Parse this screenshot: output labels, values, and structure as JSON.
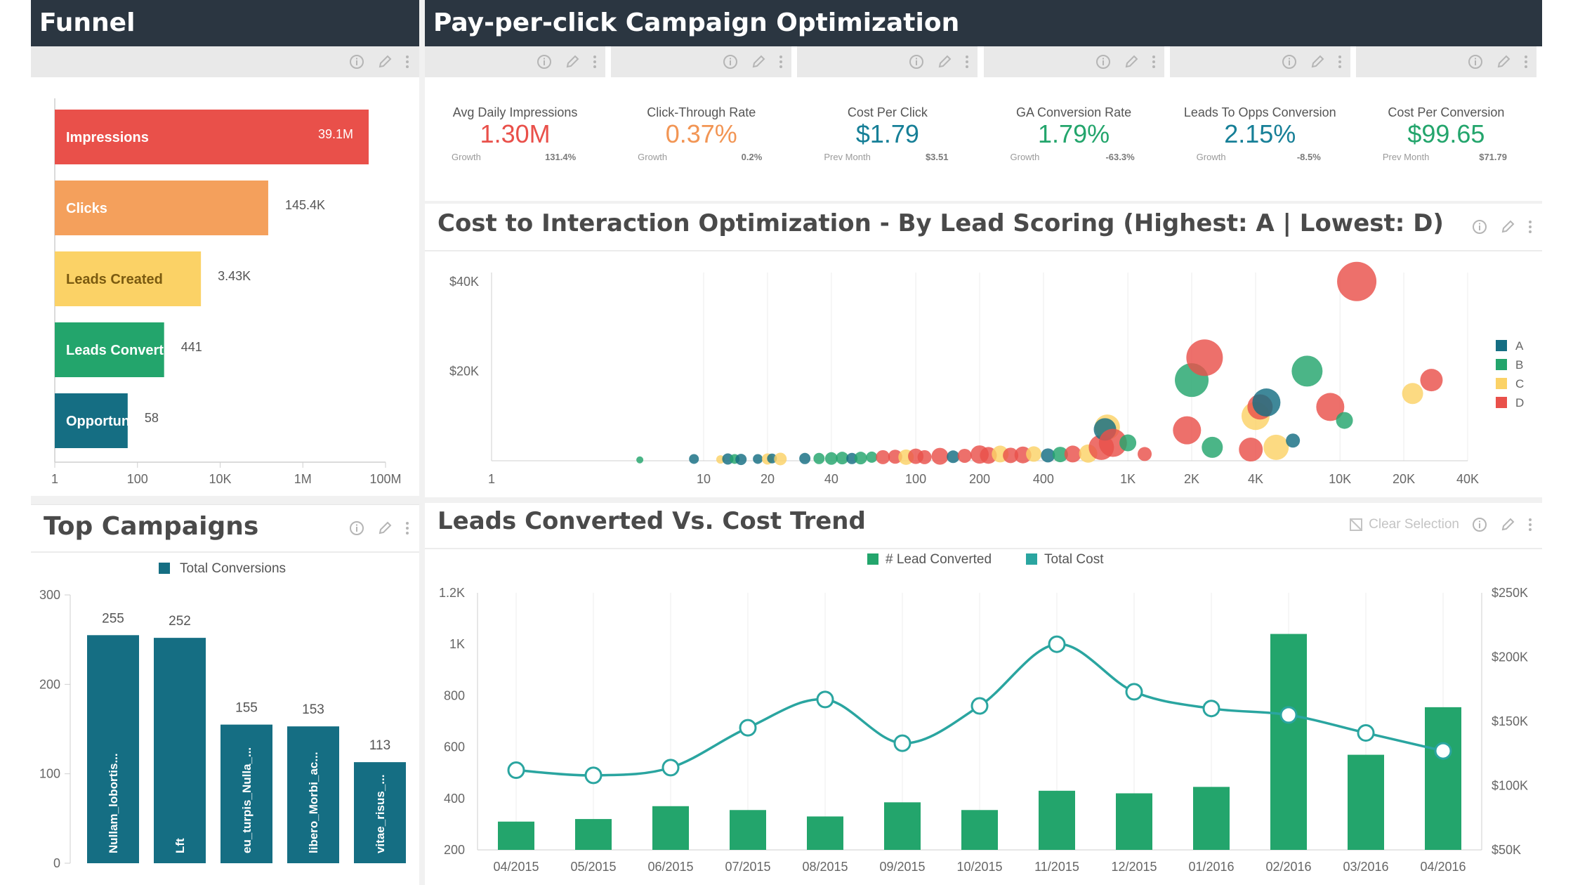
{
  "funnel": {
    "title": "Funnel",
    "bars": [
      {
        "label": "Impressions",
        "value": 39100000,
        "value_label": "39.1M",
        "color": "#e9504a"
      },
      {
        "label": "Clicks",
        "value": 145400,
        "value_label": "145.4K",
        "color": "#f4a05c"
      },
      {
        "label": "Leads Created",
        "value": 3430,
        "value_label": "3.43K",
        "color": "#fbd266"
      },
      {
        "label": "Leads Converted",
        "value": 441,
        "value_label": "441",
        "color": "#23a56c"
      },
      {
        "label": "Opportunity Won",
        "value": 58,
        "value_label": "58",
        "color": "#156e83"
      }
    ],
    "axis_ticks": [
      "1",
      "100",
      "10K",
      "1M",
      "100M"
    ]
  },
  "ppc": {
    "title": "Pay-per-click Campaign Optimization",
    "kpis": [
      {
        "title": "Avg Daily Impressions",
        "value": "1.30M",
        "color": "#e9504a",
        "sub_label": "Growth",
        "sub_value": "131.4%"
      },
      {
        "title": "Click-Through Rate",
        "value": "0.37%",
        "color": "#f29554",
        "sub_label": "Growth",
        "sub_value": "0.2%"
      },
      {
        "title": "Cost Per Click",
        "value": "$1.79",
        "color": "#167f97",
        "sub_label": "Prev Month",
        "sub_value": "$3.51"
      },
      {
        "title": "GA Conversion Rate",
        "value": "1.79%",
        "color": "#23a56c",
        "sub_label": "Growth",
        "sub_value": "-63.3%"
      },
      {
        "title": "Leads To Opps Conversion",
        "value": "2.15%",
        "color": "#167f97",
        "sub_label": "Growth",
        "sub_value": "-8.5%"
      },
      {
        "title": "Cost Per Conversion",
        "value": "$99.65",
        "color": "#23a56c",
        "sub_label": "Prev Month",
        "sub_value": "$71.79"
      }
    ]
  },
  "scatter_title": "Cost to Interaction Optimization - By Lead Scoring (Highest: A | Lowest: D)",
  "trend_title": "Leads Converted Vs. Cost Trend",
  "trend_clear_selection": "Clear Selection",
  "campaigns_title": "Top Campaigns",
  "colors": {
    "A": "#156e83",
    "B": "#23a56c",
    "C": "#fbd266",
    "D": "#e9504a",
    "line": "#2aa5a0",
    "bar": "#23a56c"
  },
  "chart_data": [
    {
      "type": "scatter",
      "x_scale": "log",
      "x_ticks": [
        "1",
        "10",
        "20",
        "40",
        "100",
        "200",
        "400",
        "1K",
        "2K",
        "4K",
        "10K",
        "20K",
        "40K"
      ],
      "y_ticks": [
        "$40K",
        "$20K"
      ],
      "ylim": [
        0,
        42000
      ],
      "legend": [
        "A",
        "B",
        "C",
        "D"
      ],
      "legend_position": "right",
      "points": [
        {
          "x": 5,
          "y": 200,
          "s": 5,
          "g": "B"
        },
        {
          "x": 9,
          "y": 400,
          "s": 7,
          "g": "A"
        },
        {
          "x": 12,
          "y": 300,
          "s": 6,
          "g": "C"
        },
        {
          "x": 13,
          "y": 400,
          "s": 8,
          "g": "A"
        },
        {
          "x": 14,
          "y": 400,
          "s": 7,
          "g": "B"
        },
        {
          "x": 15,
          "y": 300,
          "s": 8,
          "g": "A"
        },
        {
          "x": 18,
          "y": 400,
          "s": 7,
          "g": "A"
        },
        {
          "x": 20,
          "y": 400,
          "s": 8,
          "g": "C"
        },
        {
          "x": 21,
          "y": 500,
          "s": 7,
          "g": "A"
        },
        {
          "x": 23,
          "y": 400,
          "s": 9,
          "g": "C"
        },
        {
          "x": 30,
          "y": 500,
          "s": 8,
          "g": "A"
        },
        {
          "x": 35,
          "y": 500,
          "s": 8,
          "g": "B"
        },
        {
          "x": 40,
          "y": 500,
          "s": 9,
          "g": "B"
        },
        {
          "x": 45,
          "y": 600,
          "s": 9,
          "g": "B"
        },
        {
          "x": 50,
          "y": 500,
          "s": 8,
          "g": "A"
        },
        {
          "x": 55,
          "y": 600,
          "s": 9,
          "g": "B"
        },
        {
          "x": 62,
          "y": 800,
          "s": 8,
          "g": "B"
        },
        {
          "x": 70,
          "y": 800,
          "s": 10,
          "g": "D"
        },
        {
          "x": 80,
          "y": 900,
          "s": 10,
          "g": "D"
        },
        {
          "x": 90,
          "y": 800,
          "s": 11,
          "g": "C"
        },
        {
          "x": 100,
          "y": 1000,
          "s": 11,
          "g": "D"
        },
        {
          "x": 110,
          "y": 800,
          "s": 10,
          "g": "D"
        },
        {
          "x": 130,
          "y": 1000,
          "s": 12,
          "g": "D"
        },
        {
          "x": 150,
          "y": 900,
          "s": 9,
          "g": "A"
        },
        {
          "x": 170,
          "y": 1100,
          "s": 10,
          "g": "D"
        },
        {
          "x": 200,
          "y": 1400,
          "s": 13,
          "g": "D"
        },
        {
          "x": 220,
          "y": 1200,
          "s": 12,
          "g": "D"
        },
        {
          "x": 250,
          "y": 1500,
          "s": 12,
          "g": "C"
        },
        {
          "x": 280,
          "y": 1200,
          "s": 11,
          "g": "D"
        },
        {
          "x": 320,
          "y": 1300,
          "s": 12,
          "g": "D"
        },
        {
          "x": 360,
          "y": 1500,
          "s": 11,
          "g": "C"
        },
        {
          "x": 420,
          "y": 1200,
          "s": 10,
          "g": "A"
        },
        {
          "x": 480,
          "y": 1400,
          "s": 11,
          "g": "B"
        },
        {
          "x": 550,
          "y": 1500,
          "s": 12,
          "g": "D"
        },
        {
          "x": 650,
          "y": 1600,
          "s": 13,
          "g": "C"
        },
        {
          "x": 750,
          "y": 3000,
          "s": 18,
          "g": "D"
        },
        {
          "x": 800,
          "y": 7500,
          "s": 18,
          "g": "C"
        },
        {
          "x": 780,
          "y": 7000,
          "s": 16,
          "g": "A"
        },
        {
          "x": 850,
          "y": 4000,
          "s": 20,
          "g": "D"
        },
        {
          "x": 1000,
          "y": 4000,
          "s": 12,
          "g": "B"
        },
        {
          "x": 1200,
          "y": 1500,
          "s": 10,
          "g": "D"
        },
        {
          "x": 1900,
          "y": 6800,
          "s": 20,
          "g": "D"
        },
        {
          "x": 2000,
          "y": 18000,
          "s": 24,
          "g": "B"
        },
        {
          "x": 2300,
          "y": 23000,
          "s": 26,
          "g": "D"
        },
        {
          "x": 2500,
          "y": 3000,
          "s": 15,
          "g": "B"
        },
        {
          "x": 3800,
          "y": 2500,
          "s": 17,
          "g": "D"
        },
        {
          "x": 4000,
          "y": 10000,
          "s": 20,
          "g": "C"
        },
        {
          "x": 4200,
          "y": 12000,
          "s": 18,
          "g": "D"
        },
        {
          "x": 4500,
          "y": 13000,
          "s": 20,
          "g": "A"
        },
        {
          "x": 5000,
          "y": 3000,
          "s": 18,
          "g": "C"
        },
        {
          "x": 6000,
          "y": 4500,
          "s": 10,
          "g": "A"
        },
        {
          "x": 7000,
          "y": 20000,
          "s": 22,
          "g": "B"
        },
        {
          "x": 9000,
          "y": 12000,
          "s": 20,
          "g": "D"
        },
        {
          "x": 10500,
          "y": 9000,
          "s": 12,
          "g": "B"
        },
        {
          "x": 12000,
          "y": 40000,
          "s": 28,
          "g": "D"
        },
        {
          "x": 22000,
          "y": 15000,
          "s": 15,
          "g": "C"
        },
        {
          "x": 27000,
          "y": 18000,
          "s": 16,
          "g": "D"
        }
      ]
    },
    {
      "type": "bar",
      "legend": [
        "Total Conversions"
      ],
      "categories": [
        "Nullam_lobortis...",
        "Lft",
        "eu_turpis_Nulla_...",
        "libero_Morbi_ac...",
        "vitae_risus_..."
      ],
      "values": [
        255,
        252,
        155,
        153,
        113
      ],
      "y_ticks": [
        "300",
        "200",
        "100",
        "0"
      ],
      "ylim": [
        0,
        300
      ]
    },
    {
      "type": "bar+line",
      "categories": [
        "04/2015",
        "05/2015",
        "06/2015",
        "07/2015",
        "08/2015",
        "09/2015",
        "10/2015",
        "11/2015",
        "12/2015",
        "01/2016",
        "02/2016",
        "03/2016",
        "04/2016"
      ],
      "series": [
        {
          "name": "# Lead Converted",
          "type": "bar",
          "axis": "left",
          "values": [
            310,
            320,
            370,
            355,
            330,
            385,
            355,
            430,
            420,
            445,
            1040,
            570,
            755
          ]
        },
        {
          "name": "Total Cost",
          "type": "line",
          "axis": "right",
          "values": [
            112000,
            108000,
            114000,
            145000,
            167000,
            133000,
            162000,
            210000,
            173000,
            160000,
            155000,
            141000,
            127000
          ]
        }
      ],
      "left_ticks": [
        "1.2K",
        "1K",
        "800",
        "600",
        "400",
        "200"
      ],
      "left_range": [
        200,
        1200
      ],
      "right_ticks": [
        "$250K",
        "$200K",
        "$150K",
        "$100K",
        "$50K"
      ],
      "right_range": [
        50000,
        250000
      ]
    }
  ]
}
